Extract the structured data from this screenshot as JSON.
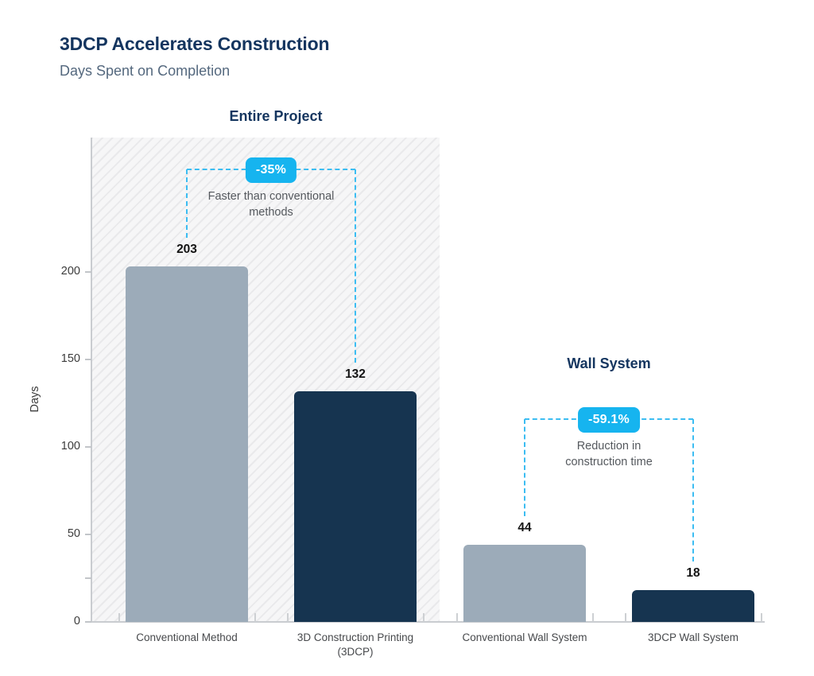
{
  "header": {
    "title": "3DCP Accelerates Construction",
    "subtitle": "Days Spent on Completion"
  },
  "chart_data": {
    "type": "bar",
    "title": "3DCP Accelerates Construction",
    "subtitle": "Days Spent on Completion",
    "ylabel": "Days",
    "ylim": [
      0,
      250
    ],
    "yticks": [
      0,
      50,
      100,
      150,
      200
    ],
    "yticks_minor": [
      25
    ],
    "grid": false,
    "legend": "none",
    "groups": [
      {
        "title": "Entire Project",
        "hatched_background": true,
        "categories": [
          "Conventional Method",
          "3D Construction Printing (3DCP)"
        ],
        "values": [
          203,
          132
        ],
        "bar_colors": [
          "#9cabb9",
          "#163450"
        ],
        "annotation": {
          "badge": "-35%",
          "caption": "Faster than conventional methods"
        }
      },
      {
        "title": "Wall System",
        "hatched_background": false,
        "categories": [
          "Conventional Wall System",
          "3DCP Wall System"
        ],
        "values": [
          44,
          18
        ],
        "bar_colors": [
          "#9cabb9",
          "#163450"
        ],
        "annotation": {
          "badge": "-59.1%",
          "caption": "Reduction in construction time"
        }
      }
    ],
    "colors": {
      "light_bar": "#9cabb9",
      "dark_bar": "#163450",
      "accent_badge": "#16b4ef",
      "dashed_line": "#3cbdf2",
      "title_navy": "#14355f",
      "subtitle_gray_blue": "#54687e",
      "axis_line": "#c9ccd0",
      "tick_text": "#3c3c3c",
      "value_label": "#141414",
      "caption_text": "#55595e"
    }
  }
}
